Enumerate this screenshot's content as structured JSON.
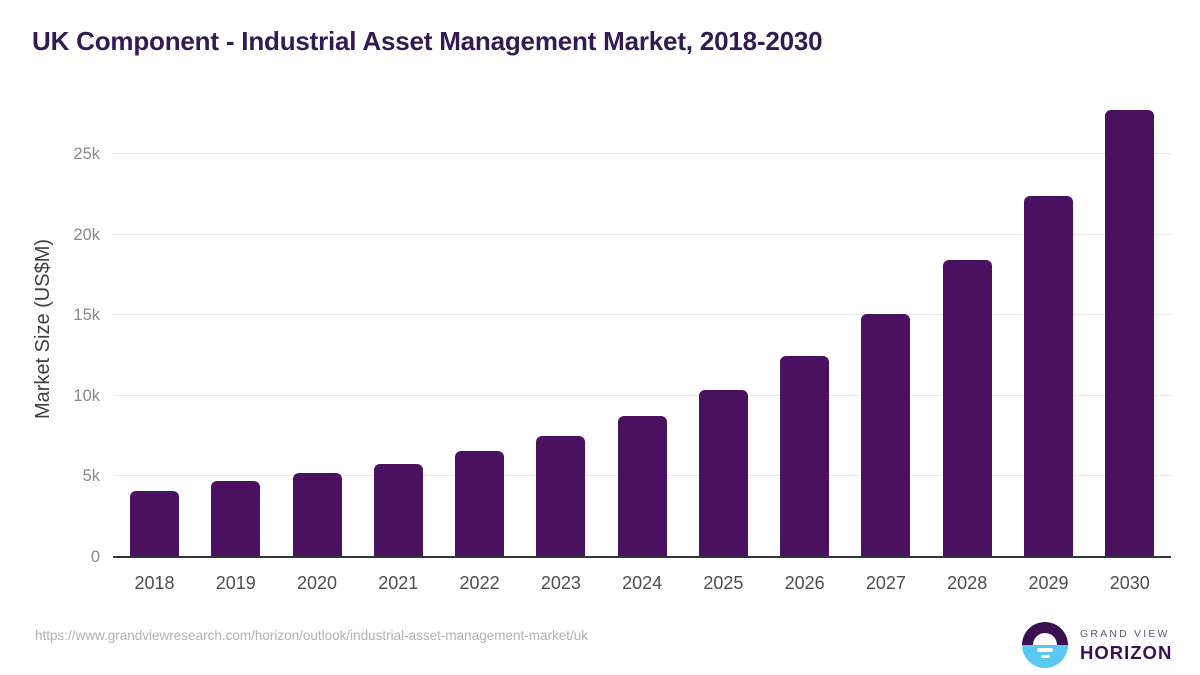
{
  "page": {
    "title": "UK Component - Industrial Asset Management Market, 2018-2030",
    "source_url": "https://www.grandviewresearch.com/horizon/outlook/industrial-asset-management-market/uk",
    "brand": {
      "name_top": "GRAND VIEW",
      "name_bottom": "HORIZON",
      "logo_icon": "horizon-sun-over-water-icon"
    }
  },
  "colors": {
    "bar": "#4b1161",
    "title": "#321a52",
    "grid": "#e8e8e8",
    "axis_line": "#32333a",
    "x_tick": "#4d4d4d",
    "y_tick": "#8a8a8a",
    "y_axis_title": "#3f3f3f",
    "url_text": "#b3b0b5",
    "logo_blue": "#5ac8ef",
    "logo_purple": "#3a1053",
    "brand_gray": "#5f5a6b"
  },
  "chart_data": {
    "type": "bar",
    "title": "UK Component - Industrial Asset Management Market, 2018-2030",
    "categories": [
      "2018",
      "2019",
      "2020",
      "2021",
      "2022",
      "2023",
      "2024",
      "2025",
      "2026",
      "2027",
      "2028",
      "2029",
      "2030"
    ],
    "values": [
      4100,
      4700,
      5200,
      5750,
      6550,
      7500,
      8750,
      10350,
      12450,
      15100,
      18400,
      22400,
      27700
    ],
    "xlabel": "",
    "ylabel": "Market Size (US$M)",
    "units": "US$M",
    "ylim": [
      0,
      28650
    ],
    "y_ticks": [
      {
        "value": 0,
        "label": "0"
      },
      {
        "value": 5000,
        "label": "5k"
      },
      {
        "value": 10000,
        "label": "10k"
      },
      {
        "value": 15000,
        "label": "15k"
      },
      {
        "value": 20000,
        "label": "20k"
      },
      {
        "value": 25000,
        "label": "25k"
      }
    ],
    "grid": true,
    "legend": false
  }
}
